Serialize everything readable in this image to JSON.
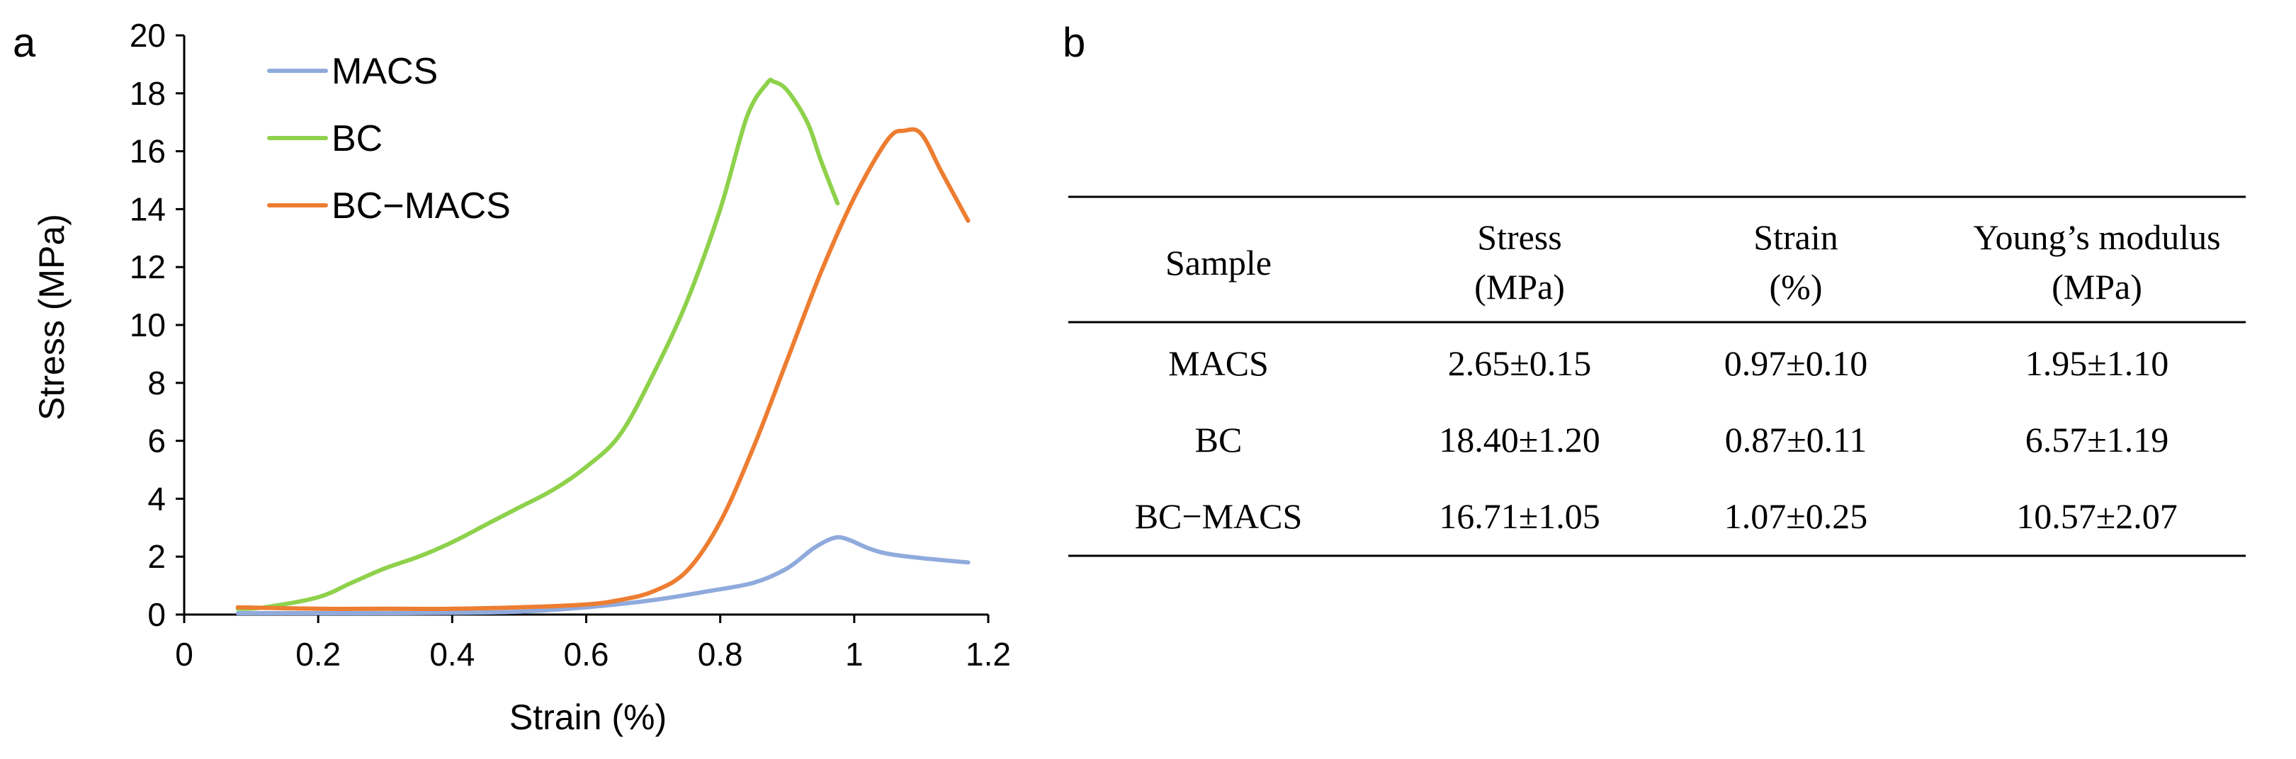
{
  "panel_a_label": "a",
  "panel_b_label": "b",
  "chart_data": {
    "type": "line",
    "title": "",
    "xlabel": "Strain (%)",
    "ylabel": "Stress (MPa)",
    "xlim": [
      0,
      1.2
    ],
    "ylim": [
      0,
      20
    ],
    "xticks": [
      0,
      0.2,
      0.4,
      0.6,
      0.8,
      1,
      1.2
    ],
    "xtick_labels": [
      "0",
      "0.2",
      "0.4",
      "0.6",
      "0.8",
      "1",
      "1.2"
    ],
    "yticks": [
      0,
      2,
      4,
      6,
      8,
      10,
      12,
      14,
      16,
      18,
      20
    ],
    "ytick_labels": [
      "0",
      "2",
      "4",
      "6",
      "8",
      "10",
      "12",
      "14",
      "16",
      "18",
      "20"
    ],
    "legend_position": "top-left",
    "series": [
      {
        "name": "MACS",
        "color": "#8faadc",
        "x": [
          0.08,
          0.2,
          0.3,
          0.4,
          0.5,
          0.6,
          0.7,
          0.78,
          0.85,
          0.9,
          0.94,
          0.97,
          0.99,
          1.02,
          1.05,
          1.1,
          1.17
        ],
        "y": [
          0.05,
          0.05,
          0.05,
          0.06,
          0.1,
          0.25,
          0.5,
          0.8,
          1.1,
          1.6,
          2.3,
          2.65,
          2.6,
          2.3,
          2.1,
          1.95,
          1.8
        ]
      },
      {
        "name": "BC",
        "color": "#8ed14b",
        "x": [
          0.08,
          0.12,
          0.2,
          0.25,
          0.3,
          0.35,
          0.4,
          0.45,
          0.5,
          0.55,
          0.6,
          0.65,
          0.7,
          0.75,
          0.8,
          0.84,
          0.87,
          0.88,
          0.9,
          0.93,
          0.95,
          0.975
        ],
        "y": [
          0.2,
          0.25,
          0.6,
          1.1,
          1.6,
          2.0,
          2.5,
          3.1,
          3.7,
          4.3,
          5.1,
          6.2,
          8.3,
          10.8,
          14.0,
          17.2,
          18.35,
          18.4,
          18.1,
          17.0,
          15.7,
          14.2
        ]
      },
      {
        "name": "BC−MACS",
        "color": "#ed7d31",
        "x": [
          0.08,
          0.2,
          0.3,
          0.4,
          0.5,
          0.6,
          0.65,
          0.7,
          0.75,
          0.8,
          0.85,
          0.9,
          0.95,
          1.0,
          1.05,
          1.075,
          1.1,
          1.13,
          1.17
        ],
        "y": [
          0.25,
          0.2,
          0.2,
          0.2,
          0.25,
          0.35,
          0.5,
          0.8,
          1.5,
          3.2,
          5.8,
          8.8,
          11.8,
          14.4,
          16.4,
          16.71,
          16.6,
          15.3,
          13.6
        ]
      }
    ]
  },
  "table": {
    "headers": [
      [
        "Sample"
      ],
      [
        "Stress",
        "(MPa)"
      ],
      [
        "Strain",
        "(%)"
      ],
      [
        "Young’s modulus",
        "(MPa)"
      ]
    ],
    "rows": [
      [
        "MACS",
        "2.65±0.15",
        "0.97±0.10",
        "1.95±1.10"
      ],
      [
        "BC",
        "18.40±1.20",
        "0.87±0.11",
        "6.57±1.19"
      ],
      [
        "BC−MACS",
        "16.71±1.05",
        "1.07±0.25",
        "10.57±2.07"
      ]
    ]
  }
}
